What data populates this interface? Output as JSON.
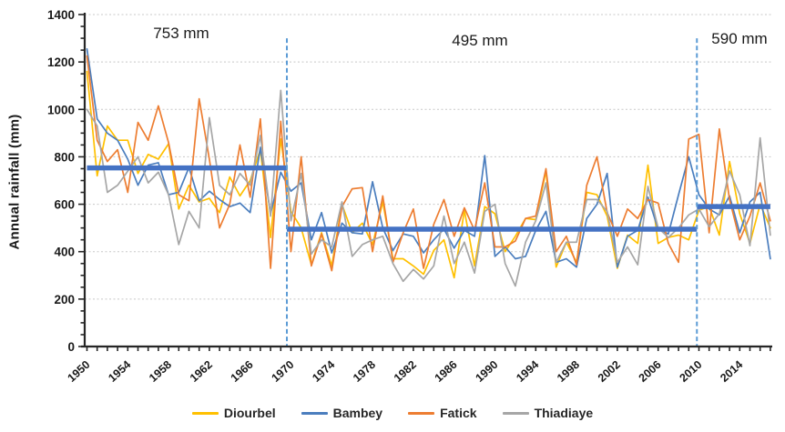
{
  "chart_data": {
    "type": "line",
    "title": "",
    "xlabel": "",
    "ylabel": "Annual rainfall (mm)",
    "x_start": 1950,
    "x_end": 2017,
    "ylim": [
      0,
      1400
    ],
    "y_ticks": [
      0,
      200,
      400,
      600,
      800,
      1000,
      1200,
      1400
    ],
    "y_minor_step": 50,
    "x_minor_step": 1,
    "x_tick_labels": [
      1950,
      1954,
      1958,
      1962,
      1966,
      1970,
      1974,
      1978,
      1982,
      1986,
      1990,
      1994,
      1998,
      2002,
      2006,
      2010,
      2014
    ],
    "grid": "horizontal-dashed",
    "legend_position": "bottom",
    "series": [
      {
        "name": "Diourbel",
        "color": "#FFC000",
        "values": [
          1160,
          720,
          930,
          870,
          870,
          730,
          810,
          790,
          855,
          580,
          680,
          610,
          625,
          565,
          715,
          635,
          700,
          830,
          460,
          875,
          570,
          500,
          345,
          480,
          340,
          600,
          480,
          520,
          430,
          610,
          370,
          370,
          340,
          305,
          405,
          450,
          290,
          575,
          340,
          590,
          560,
          400,
          465,
          540,
          535,
          740,
          335,
          440,
          355,
          650,
          640,
          550,
          330,
          470,
          435,
          765,
          435,
          460,
          470,
          450,
          575,
          590,
          470,
          780,
          560,
          435,
          600,
          500
        ]
      },
      {
        "name": "Bambey",
        "color": "#4B7EBE",
        "values": [
          1255,
          960,
          900,
          870,
          790,
          680,
          765,
          775,
          640,
          650,
          755,
          615,
          655,
          620,
          590,
          605,
          565,
          840,
          560,
          735,
          655,
          690,
          450,
          565,
          395,
          520,
          480,
          475,
          695,
          500,
          405,
          475,
          465,
          395,
          450,
          495,
          415,
          490,
          465,
          805,
          380,
          420,
          370,
          380,
          490,
          570,
          355,
          370,
          335,
          540,
          600,
          730,
          335,
          465,
          490,
          630,
          495,
          475,
          640,
          800,
          640,
          580,
          555,
          635,
          480,
          610,
          650,
          370
        ]
      },
      {
        "name": "Fatick",
        "color": "#ED7D31",
        "values": [
          1225,
          870,
          780,
          830,
          650,
          945,
          870,
          1015,
          860,
          640,
          615,
          1045,
          790,
          500,
          600,
          850,
          630,
          960,
          330,
          950,
          400,
          800,
          340,
          475,
          320,
          590,
          665,
          670,
          400,
          635,
          355,
          480,
          580,
          330,
          515,
          620,
          465,
          585,
          490,
          690,
          420,
          420,
          445,
          540,
          550,
          750,
          400,
          465,
          345,
          680,
          800,
          565,
          465,
          580,
          540,
          620,
          605,
          435,
          355,
          875,
          895,
          480,
          918,
          620,
          450,
          550,
          690,
          530
        ]
      },
      {
        "name": "Thiadiaye",
        "color": "#A6A6A6",
        "values": [
          1000,
          930,
          650,
          680,
          740,
          800,
          690,
          735,
          640,
          430,
          570,
          500,
          965,
          680,
          640,
          730,
          680,
          890,
          550,
          1080,
          530,
          730,
          390,
          450,
          420,
          610,
          380,
          430,
          450,
          465,
          350,
          275,
          325,
          285,
          340,
          550,
          350,
          440,
          310,
          570,
          600,
          350,
          255,
          440,
          530,
          690,
          355,
          440,
          440,
          620,
          620,
          570,
          355,
          420,
          345,
          675,
          500,
          460,
          500,
          555,
          580,
          505,
          560,
          740,
          640,
          425,
          880,
          470
        ]
      }
    ],
    "mean_segments": [
      {
        "label": "753 mm",
        "value": 753,
        "from": 1950,
        "to": 1969.6
      },
      {
        "label": "495 mm",
        "value": 495,
        "from": 1969.6,
        "to": 2009.8
      },
      {
        "label": "590 mm",
        "value": 590,
        "from": 2009.8,
        "to": 2017
      }
    ],
    "breakpoints": [
      1969.6,
      2009.8
    ],
    "breakpoint_top_value": 1300,
    "mean_line_color": "#4472C4",
    "breakpoint_line_color": "#5B9BD5",
    "annotations": [
      {
        "label": "753 mm",
        "x": 199,
        "y": 37
      },
      {
        "label": "495 mm",
        "x": 527,
        "y": 45
      },
      {
        "label": "590 mm",
        "x": 812,
        "y": 43
      }
    ]
  }
}
